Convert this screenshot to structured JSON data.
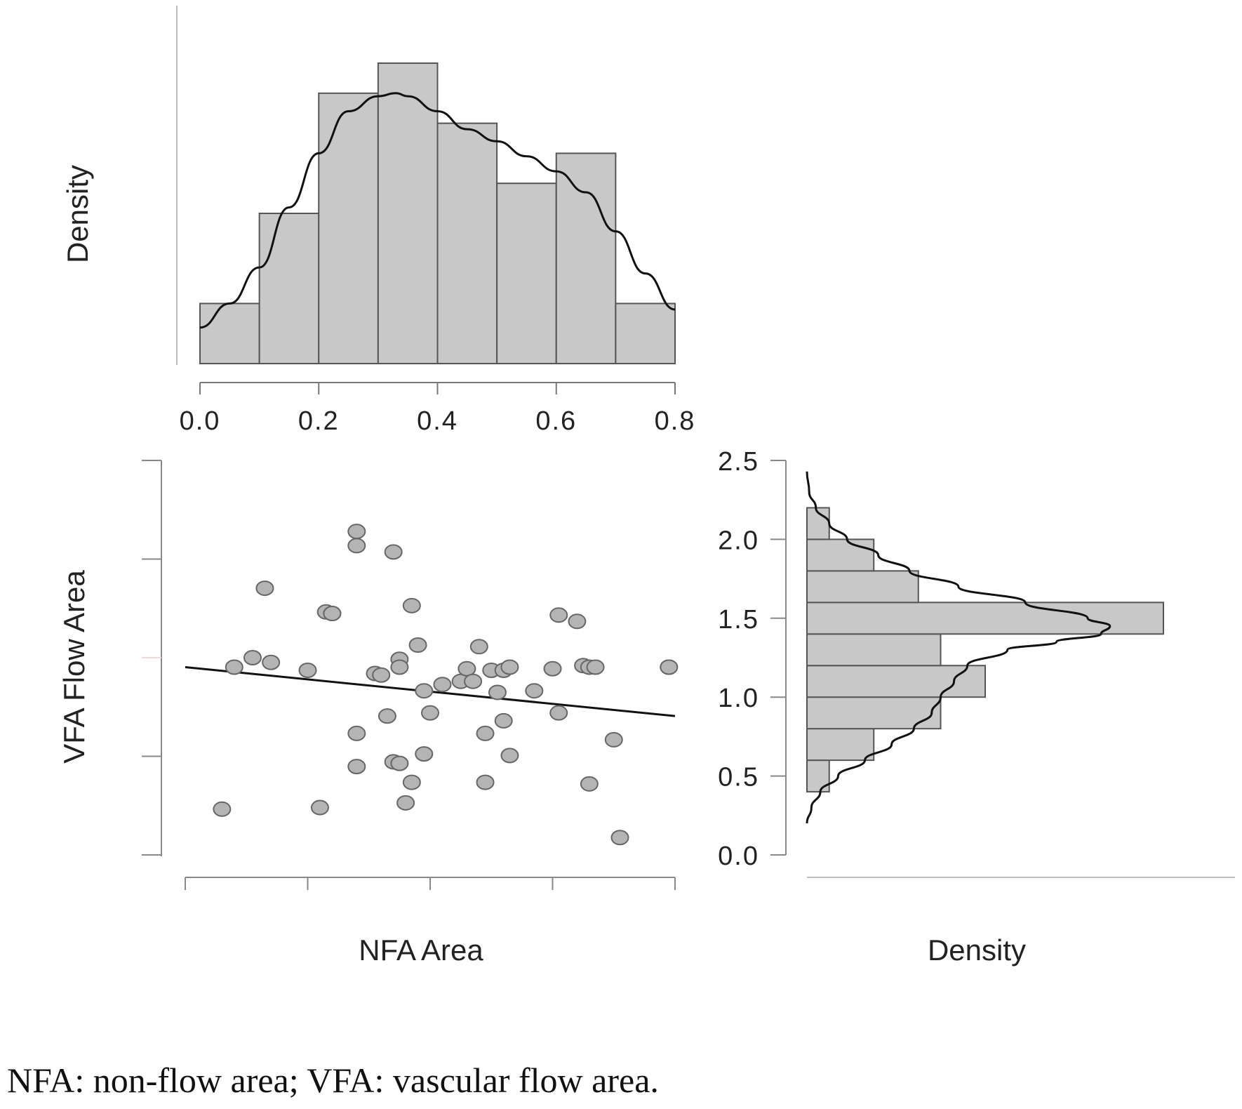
{
  "chart_data": [
    {
      "type": "bar",
      "panel": "top-histogram",
      "ylabel": "Density",
      "xlim": [
        0,
        0.8
      ],
      "x_ticks": [
        "0.0",
        "0.2",
        "0.4",
        "0.6",
        "0.8"
      ],
      "bins": [
        {
          "from": 0.0,
          "to": 0.1,
          "height": 1.0
        },
        {
          "from": 0.1,
          "to": 0.2,
          "height": 2.5
        },
        {
          "from": 0.2,
          "to": 0.3,
          "height": 4.5
        },
        {
          "from": 0.3,
          "to": 0.4,
          "height": 5.0
        },
        {
          "from": 0.4,
          "to": 0.5,
          "height": 4.0
        },
        {
          "from": 0.5,
          "to": 0.6,
          "height": 3.0
        },
        {
          "from": 0.6,
          "to": 0.7,
          "height": 3.5
        },
        {
          "from": 0.7,
          "to": 0.8,
          "height": 1.0
        }
      ],
      "density_curve": {
        "x": [
          0.0,
          0.05,
          0.1,
          0.15,
          0.2,
          0.25,
          0.3,
          0.33,
          0.35,
          0.4,
          0.45,
          0.5,
          0.55,
          0.6,
          0.65,
          0.7,
          0.75,
          0.8
        ],
        "y": [
          0.6,
          1.0,
          1.6,
          2.6,
          3.5,
          4.2,
          4.45,
          4.5,
          4.45,
          4.2,
          3.9,
          3.7,
          3.45,
          3.2,
          2.85,
          2.2,
          1.5,
          0.9
        ]
      },
      "ylim": [
        0,
        6
      ]
    },
    {
      "type": "scatter",
      "panel": "main-scatter",
      "xlabel": "NFA Area",
      "ylabel": "VFA Flow Area",
      "xlim": [
        -0.02,
        0.78
      ],
      "ylim": [
        0,
        2.5
      ],
      "x": [
        0.04,
        0.06,
        0.09,
        0.11,
        0.12,
        0.18,
        0.2,
        0.21,
        0.22,
        0.22,
        0.26,
        0.26,
        0.26,
        0.26,
        0.29,
        0.3,
        0.31,
        0.32,
        0.32,
        0.33,
        0.33,
        0.33,
        0.34,
        0.35,
        0.35,
        0.36,
        0.37,
        0.37,
        0.38,
        0.4,
        0.43,
        0.44,
        0.45,
        0.46,
        0.47,
        0.47,
        0.48,
        0.49,
        0.5,
        0.5,
        0.51,
        0.51,
        0.55,
        0.58,
        0.59,
        0.59,
        0.62,
        0.63,
        0.64,
        0.64,
        0.65,
        0.68,
        0.69,
        0.77,
        0.77
      ],
      "y": [
        0.29,
        1.19,
        1.25,
        1.69,
        1.22,
        1.17,
        0.3,
        1.54,
        1.53,
        1.53,
        2.05,
        1.96,
        0.77,
        0.56,
        1.15,
        1.14,
        0.88,
        0.59,
        1.92,
        1.24,
        1.19,
        0.58,
        0.33,
        0.46,
        1.58,
        1.33,
        1.04,
        0.64,
        0.9,
        1.08,
        1.1,
        1.18,
        1.1,
        1.32,
        0.46,
        0.77,
        1.17,
        1.03,
        0.85,
        1.17,
        0.63,
        1.19,
        1.04,
        1.18,
        0.9,
        1.52,
        1.48,
        1.2,
        0.45,
        1.19,
        1.19,
        0.73,
        0.11,
        1.19,
        1.19
      ],
      "regression_line": {
        "x": [
          -0.02,
          0.78
        ],
        "y": [
          1.19,
          0.88
        ]
      }
    },
    {
      "type": "bar",
      "panel": "right-histogram",
      "xlabel": "Density",
      "orientation": "horizontal",
      "ylim": [
        0,
        2.5
      ],
      "y_ticks": [
        "0.0",
        "0.5",
        "1.0",
        "1.5",
        "2.0",
        "2.5"
      ],
      "bins": [
        {
          "from": 0.4,
          "to": 0.6,
          "width": 0.5
        },
        {
          "from": 0.6,
          "to": 0.8,
          "width": 1.5
        },
        {
          "from": 0.8,
          "to": 1.0,
          "width": 3.0
        },
        {
          "from": 1.0,
          "to": 1.2,
          "width": 4.0
        },
        {
          "from": 1.2,
          "to": 1.4,
          "width": 3.0
        },
        {
          "from": 1.4,
          "to": 1.6,
          "width": 8.0
        },
        {
          "from": 1.6,
          "to": 1.8,
          "width": 2.5
        },
        {
          "from": 1.8,
          "to": 2.0,
          "width": 1.5
        },
        {
          "from": 2.0,
          "to": 2.2,
          "width": 0.5
        }
      ],
      "density_curve": {
        "y": [
          0.2,
          0.3,
          0.4,
          0.5,
          0.6,
          0.7,
          0.8,
          0.9,
          1.0,
          1.1,
          1.2,
          1.3,
          1.35,
          1.4,
          1.45,
          1.5,
          1.6,
          1.7,
          1.8,
          1.9,
          2.0,
          2.1,
          2.2,
          2.3,
          2.43
        ],
        "x": [
          0.0,
          0.1,
          0.3,
          0.7,
          1.3,
          1.9,
          2.4,
          2.8,
          3.0,
          3.3,
          3.6,
          4.5,
          5.6,
          6.6,
          6.8,
          6.3,
          4.9,
          3.4,
          2.3,
          1.6,
          0.9,
          0.5,
          0.2,
          0.05,
          0.0
        ]
      },
      "xlim": [
        0,
        9
      ]
    }
  ],
  "caption": "NFA: non-flow area; VFA: vascular flow area."
}
